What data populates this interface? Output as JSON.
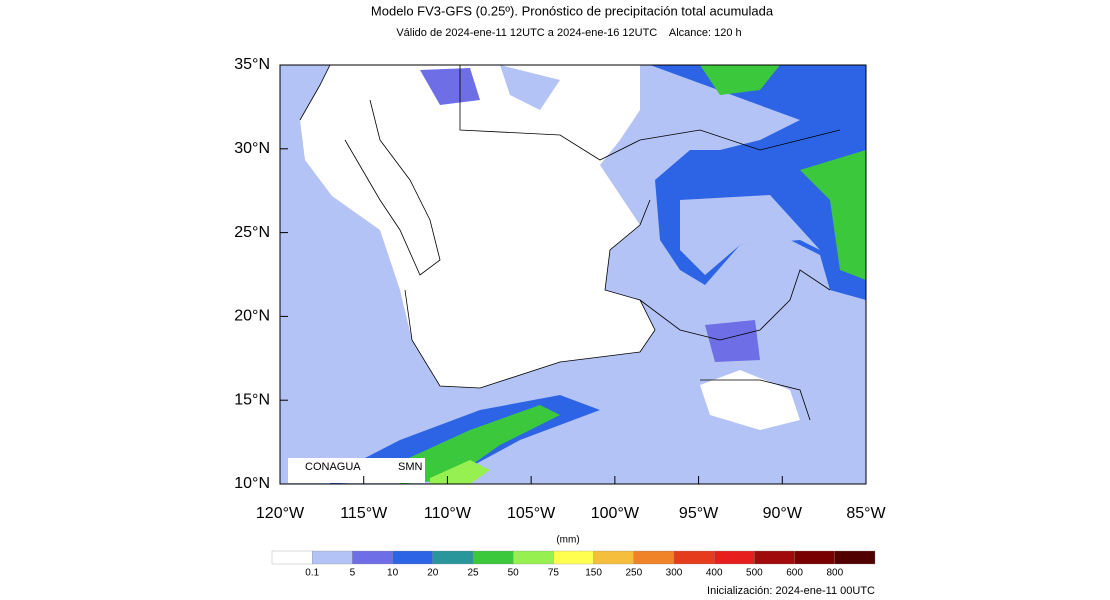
{
  "header": {
    "title": "Modelo FV3-GFS (0.25º). Pronóstico de precipitación total acumulada",
    "subtitle": "Válido de 2024-ene-11 12UTC a 2024-ene-16 12UTC    Alcance: 120 h"
  },
  "map": {
    "lat_labels": [
      "35°N",
      "30°N",
      "25°N",
      "20°N",
      "15°N",
      "10°N"
    ],
    "lon_labels": [
      "120°W",
      "115°W",
      "110°W",
      "105°W",
      "100°W",
      "95°W",
      "90°W",
      "85°W"
    ],
    "logos": [
      "CONAGUA",
      "SMN"
    ]
  },
  "colorbar": {
    "unit": "(mm)",
    "levels": [
      0.1,
      5,
      10,
      20,
      25,
      50,
      75,
      150,
      250,
      300,
      400,
      500,
      600,
      800
    ],
    "colors": [
      "#ffffff",
      "#b4c3f5",
      "#6e6ee6",
      "#2d64e6",
      "#28969b",
      "#3cc83c",
      "#96f050",
      "#ffff50",
      "#f5be3c",
      "#f08228",
      "#e63c1e",
      "#e61e1e",
      "#a00a0a",
      "#780000",
      "#500000"
    ]
  },
  "footer": {
    "init": "Inicialización: 2024-ene-11 00UTC"
  }
}
